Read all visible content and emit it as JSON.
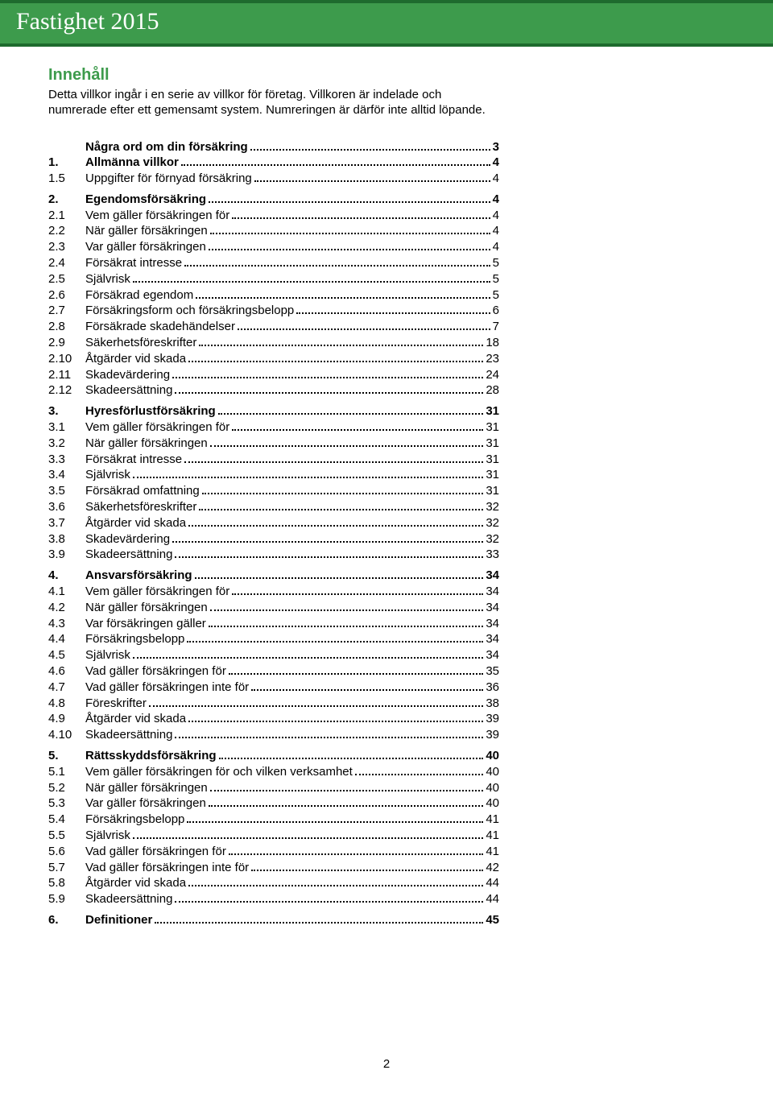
{
  "header": {
    "title": "Fastighet 2015"
  },
  "colors": {
    "accent": "#3d9b4c"
  },
  "intro": {
    "heading": "Innehåll",
    "text": "Detta villkor ingår i en serie av villkor för företag. Villkoren är indelade och numrerade efter ett gemensamt system. Numreringen är därför inte alltid löpande."
  },
  "toc": [
    {
      "num": "",
      "label": "Några ord om din försäkring",
      "page": "3",
      "bold": true,
      "gapBefore": false
    },
    {
      "num": "1.",
      "label": "Allmänna villkor",
      "page": "4",
      "bold": true,
      "gapBefore": false
    },
    {
      "num": "1.5",
      "label": "Uppgifter för förnyad försäkring",
      "page": "4",
      "bold": false,
      "gapBefore": false
    },
    {
      "num": "2.",
      "label": "Egendomsförsäkring",
      "page": "4",
      "bold": true,
      "gapBefore": true
    },
    {
      "num": "2.1",
      "label": "Vem gäller försäkringen för",
      "page": "4",
      "bold": false,
      "gapBefore": false
    },
    {
      "num": "2.2",
      "label": "När gäller försäkringen",
      "page": "4",
      "bold": false,
      "gapBefore": false
    },
    {
      "num": "2.3",
      "label": "Var gäller försäkringen",
      "page": "4",
      "bold": false,
      "gapBefore": false
    },
    {
      "num": "2.4",
      "label": "Försäkrat intresse",
      "page": "5",
      "bold": false,
      "gapBefore": false
    },
    {
      "num": "2.5",
      "label": "Självrisk",
      "page": "5",
      "bold": false,
      "gapBefore": false
    },
    {
      "num": "2.6",
      "label": "Försäkrad egendom",
      "page": "5",
      "bold": false,
      "gapBefore": false
    },
    {
      "num": "2.7",
      "label": "Försäkringsform och försäkringsbelopp",
      "page": "6",
      "bold": false,
      "gapBefore": false
    },
    {
      "num": "2.8",
      "label": "Försäkrade skadehändelser",
      "page": "7",
      "bold": false,
      "gapBefore": false
    },
    {
      "num": "2.9",
      "label": "Säkerhetsföreskrifter",
      "page": "18",
      "bold": false,
      "gapBefore": false
    },
    {
      "num": "2.10",
      "label": "Åtgärder vid skada",
      "page": "23",
      "bold": false,
      "gapBefore": false
    },
    {
      "num": "2.11",
      "label": "Skadevärdering",
      "page": "24",
      "bold": false,
      "gapBefore": false
    },
    {
      "num": "2.12",
      "label": "Skadeersättning",
      "page": "28",
      "bold": false,
      "gapBefore": false
    },
    {
      "num": "3.",
      "label": "Hyresförlustförsäkring",
      "page": "31",
      "bold": true,
      "gapBefore": true
    },
    {
      "num": "3.1",
      "label": "Vem gäller försäkringen för",
      "page": "31",
      "bold": false,
      "gapBefore": false
    },
    {
      "num": "3.2",
      "label": "När gäller försäkringen",
      "page": "31",
      "bold": false,
      "gapBefore": false
    },
    {
      "num": "3.3",
      "label": "Försäkrat intresse",
      "page": "31",
      "bold": false,
      "gapBefore": false
    },
    {
      "num": "3.4",
      "label": "Självrisk",
      "page": "31",
      "bold": false,
      "gapBefore": false
    },
    {
      "num": "3.5",
      "label": "Försäkrad omfattning",
      "page": "31",
      "bold": false,
      "gapBefore": false
    },
    {
      "num": "3.6",
      "label": "Säkerhetsföreskrifter",
      "page": "32",
      "bold": false,
      "gapBefore": false
    },
    {
      "num": "3.7",
      "label": "Åtgärder vid skada",
      "page": "32",
      "bold": false,
      "gapBefore": false
    },
    {
      "num": "3.8",
      "label": "Skadevärdering",
      "page": "32",
      "bold": false,
      "gapBefore": false
    },
    {
      "num": "3.9",
      "label": "Skadeersättning",
      "page": "33",
      "bold": false,
      "gapBefore": false
    },
    {
      "num": "4.",
      "label": "Ansvarsförsäkring",
      "page": "34",
      "bold": true,
      "gapBefore": true
    },
    {
      "num": "4.1",
      "label": "Vem gäller försäkringen för",
      "page": "34",
      "bold": false,
      "gapBefore": false
    },
    {
      "num": "4.2",
      "label": "När gäller försäkringen",
      "page": "34",
      "bold": false,
      "gapBefore": false
    },
    {
      "num": "4.3",
      "label": "Var försäkringen gäller",
      "page": "34",
      "bold": false,
      "gapBefore": false
    },
    {
      "num": "4.4",
      "label": "Försäkringsbelopp",
      "page": "34",
      "bold": false,
      "gapBefore": false
    },
    {
      "num": "4.5",
      "label": "Självrisk",
      "page": "34",
      "bold": false,
      "gapBefore": false
    },
    {
      "num": "4.6",
      "label": "Vad gäller försäkringen för",
      "page": "35",
      "bold": false,
      "gapBefore": false
    },
    {
      "num": "4.7",
      "label": "Vad gäller försäkringen inte för",
      "page": "36",
      "bold": false,
      "gapBefore": false
    },
    {
      "num": "4.8",
      "label": "Föreskrifter",
      "page": "38",
      "bold": false,
      "gapBefore": false
    },
    {
      "num": "4.9",
      "label": "Åtgärder vid skada",
      "page": "39",
      "bold": false,
      "gapBefore": false
    },
    {
      "num": "4.10",
      "label": "Skadeersättning",
      "page": "39",
      "bold": false,
      "gapBefore": false
    },
    {
      "num": "5.",
      "label": "Rättsskyddsförsäkring",
      "page": "40",
      "bold": true,
      "gapBefore": true
    },
    {
      "num": "5.1",
      "label": "Vem gäller försäkringen för och vilken verksamhet",
      "page": "40",
      "bold": false,
      "gapBefore": false
    },
    {
      "num": "5.2",
      "label": "När gäller försäkringen",
      "page": "40",
      "bold": false,
      "gapBefore": false
    },
    {
      "num": "5.3",
      "label": "Var gäller försäkringen",
      "page": "40",
      "bold": false,
      "gapBefore": false
    },
    {
      "num": "5.4",
      "label": "Försäkringsbelopp",
      "page": "41",
      "bold": false,
      "gapBefore": false
    },
    {
      "num": "5.5",
      "label": "Självrisk",
      "page": "41",
      "bold": false,
      "gapBefore": false
    },
    {
      "num": "5.6",
      "label": "Vad gäller försäkringen för",
      "page": "41",
      "bold": false,
      "gapBefore": false
    },
    {
      "num": "5.7",
      "label": "Vad gäller försäkringen inte för",
      "page": "42",
      "bold": false,
      "gapBefore": false
    },
    {
      "num": "5.8",
      "label": "Åtgärder vid skada",
      "page": "44",
      "bold": false,
      "gapBefore": false
    },
    {
      "num": "5.9",
      "label": "Skadeersättning",
      "page": "44",
      "bold": false,
      "gapBefore": false
    },
    {
      "num": "6.",
      "label": "Definitioner",
      "page": "45",
      "bold": true,
      "gapBefore": true
    }
  ],
  "pageNumber": "2"
}
